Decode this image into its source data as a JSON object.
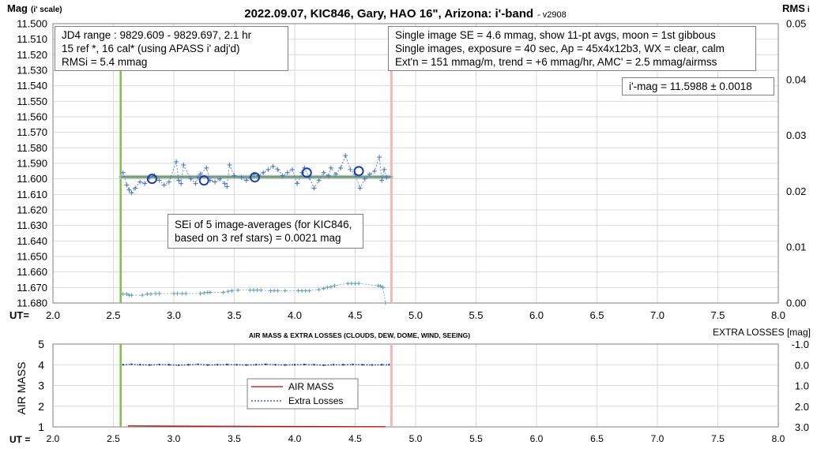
{
  "title": "2022.09.07, KIC846, Gary, HAO 16\", Arizona: i'-band",
  "version": "- v2908",
  "top_left_axis_label": "Mag",
  "top_left_axis_sub": "(i' scale)",
  "top_right_axis_label": "RMS",
  "top_right_axis_sub": "i",
  "ut_label": "UT=",
  "ut_label_bottom": "UT =",
  "info_left": [
    "JD4 range : 9829.609 - 9829.697, 2.1  hr",
    "15 ref *, 16 cal* (using APASS i' adj'd)",
    "RMSi = 5.4 mmag"
  ],
  "info_right": [
    "Single image SE = 4.6 mmag, show 11-pt avgs, moon = 1st gibbous",
    "Single images, exposure = 40 sec, Ap = 45x4x12b3, WX = clear, calm",
    "Ext'n = 151 mmag/m, trend = +6 mmag/hr, AMC' = 2.5 mmag/airmss"
  ],
  "result_box": "i'-mag = 11.5988 ± 0.0018",
  "sei_box": [
    "SEi of 5 image-averages (for KIC846,",
    "based on 3 ref stars) = 0.0021 mag"
  ],
  "bottom_title": "AIR MASS & EXTRA LOSSES (CLOUDS, DEW, DOME, WIND, SEEING)",
  "bottom_left_axis_label": "AIR MASS",
  "bottom_right_axis_label": "EXTRA LOSSES [mag]",
  "legend": [
    "AIR MASS",
    "Extra Losses"
  ],
  "colors": {
    "grid": "#d9d9d9",
    "points": "#4472c4",
    "averages": "#1f3f9f",
    "rms_points": "#5b9bb5",
    "fit_line": "#5a9e6f",
    "start_line": "#7cc243",
    "end_line": "#f4b6b6",
    "airmass": "#c00000",
    "extra_losses": "#1f3f9f"
  },
  "chart_data": [
    {
      "type": "scatter",
      "x": [
        2.0,
        2.5,
        3.0,
        3.5,
        4.0,
        4.5,
        5.0,
        5.5,
        6.0,
        6.5,
        7.0,
        7.5,
        8.0
      ],
      "x_ticks": [
        "2.0",
        "2.5",
        "3.0",
        "3.5",
        "4.0",
        "4.5",
        "5.0",
        "5.5",
        "6.0",
        "6.5",
        "7.0",
        "7.5",
        "8.0"
      ],
      "y_ticks": [
        "11.500",
        "11.510",
        "11.520",
        "11.530",
        "11.540",
        "11.550",
        "11.560",
        "11.570",
        "11.580",
        "11.590",
        "11.600",
        "11.610",
        "11.620",
        "11.630",
        "11.640",
        "11.650",
        "11.660",
        "11.670",
        "11.680"
      ],
      "y2_ticks": [
        "0.05",
        "0.04",
        "0.03",
        "0.02",
        "0.01",
        "0.00"
      ],
      "xlim": [
        2.0,
        8.0
      ],
      "ylim": [
        11.5,
        11.68
      ],
      "y2lim": [
        0.0,
        0.05
      ],
      "y_inverted": true,
      "grid": true,
      "vertical_markers": [
        2.56,
        4.8
      ],
      "fit_line": {
        "x": [
          2.56,
          4.8
        ],
        "y": [
          11.5988,
          11.5988
        ]
      },
      "series": [
        {
          "x": [
            2.58,
            2.61,
            2.63,
            2.65,
            2.68,
            2.72,
            2.76,
            2.8,
            2.84,
            2.88,
            2.92,
            2.96,
            3.02,
            3.04,
            3.06,
            3.08,
            3.14,
            3.18,
            3.2,
            3.22,
            3.27,
            3.3,
            3.34,
            3.38,
            3.42,
            3.44,
            3.46,
            3.5,
            3.56,
            3.6,
            3.66,
            3.7,
            3.74,
            3.78,
            3.82,
            3.86,
            3.9,
            3.94,
            3.98,
            4.02,
            4.06,
            4.08,
            4.12,
            4.16,
            4.2,
            4.24,
            4.28,
            4.3,
            4.34,
            4.38,
            4.42,
            4.46,
            4.5,
            4.54,
            4.58,
            4.62,
            4.66,
            4.7,
            4.72,
            4.74,
            4.76
          ],
          "y": [
            11.596,
            11.604,
            11.607,
            11.609,
            11.606,
            11.602,
            11.603,
            11.599,
            11.598,
            11.601,
            11.604,
            11.602,
            11.589,
            11.601,
            11.603,
            11.591,
            11.6,
            11.603,
            11.599,
            11.597,
            11.593,
            11.601,
            11.602,
            11.6,
            11.603,
            11.605,
            11.591,
            11.598,
            11.599,
            11.601,
            11.597,
            11.598,
            11.596,
            11.594,
            11.592,
            11.594,
            11.598,
            11.596,
            11.594,
            11.603,
            11.596,
            11.593,
            11.599,
            11.606,
            11.601,
            11.596,
            11.598,
            11.593,
            11.597,
            11.593,
            11.585,
            11.594,
            11.597,
            11.606,
            11.6,
            11.597,
            11.595,
            11.586,
            11.601,
            11.594,
            11.599
          ]
        },
        {
          "name": "",
          "x": [
            2.82,
            3.25,
            3.67,
            4.1,
            4.53
          ],
          "y": [
            11.6,
            11.601,
            11.599,
            11.596,
            11.595
          ]
        },
        {
          "axis": "y2",
          "x": [
            2.58,
            2.61,
            2.63,
            2.65,
            2.74,
            2.78,
            2.81,
            2.85,
            2.88,
            3.0,
            3.03,
            3.07,
            3.1,
            3.22,
            3.25,
            3.28,
            3.3,
            3.41,
            3.45,
            3.48,
            3.53,
            3.63,
            3.66,
            3.69,
            3.72,
            3.8,
            3.83,
            3.86,
            3.92,
            4.03,
            4.06,
            4.09,
            4.12,
            4.2,
            4.24,
            4.27,
            4.3,
            4.33,
            4.44,
            4.47,
            4.5,
            4.53,
            4.69,
            4.71,
            4.73,
            4.75
          ],
          "y": [
            0.0016,
            0.0016,
            0.0014,
            0.0014,
            0.0014,
            0.0016,
            0.0016,
            0.0017,
            0.0017,
            0.0017,
            0.0017,
            0.0017,
            0.0017,
            0.0017,
            0.0018,
            0.0019,
            0.0019,
            0.0019,
            0.0021,
            0.0022,
            0.0023,
            0.0023,
            0.0023,
            0.0023,
            0.0023,
            0.0022,
            0.0022,
            0.0022,
            0.0022,
            0.0022,
            0.0022,
            0.0022,
            0.0022,
            0.0024,
            0.0026,
            0.0028,
            0.0029,
            0.0031,
            0.0035,
            0.0035,
            0.0035,
            0.0035,
            0.0031,
            0.003,
            0.0028,
            0.0
          ]
        }
      ]
    },
    {
      "type": "line",
      "x_ticks": [
        "2.0",
        "2.5",
        "3.0",
        "3.5",
        "4.0",
        "4.5",
        "5.0",
        "5.5",
        "6.0",
        "6.5",
        "7.0",
        "7.5",
        "8.0"
      ],
      "y_ticks": [
        "5",
        "4",
        "3",
        "2",
        "1"
      ],
      "y2_ticks": [
        "-1.0",
        "0.0",
        "1.0",
        "2.0",
        "3.0"
      ],
      "xlim": [
        2.0,
        8.0
      ],
      "ylim": [
        1,
        5
      ],
      "y2lim": [
        -1.0,
        3.0
      ],
      "grid": true,
      "vertical_markers": [
        2.56,
        4.8
      ],
      "series": [
        {
          "name": "AIR MASS",
          "axis": "y",
          "x": [
            2.62,
            3.0,
            3.5,
            4.0,
            4.5,
            4.75
          ],
          "y": [
            1.05,
            1.04,
            1.03,
            1.02,
            1.01,
            1.01
          ]
        },
        {
          "name": "Extra Losses",
          "axis": "y2",
          "x": [
            2.58,
            2.65,
            2.72,
            2.8,
            2.88,
            2.96,
            3.04,
            3.12,
            3.2,
            3.28,
            3.36,
            3.44,
            3.52,
            3.6,
            3.68,
            3.76,
            3.84,
            3.92,
            4.0,
            4.08,
            4.16,
            4.24,
            4.32,
            4.4,
            4.48,
            4.56,
            4.64,
            4.72,
            4.78
          ],
          "y": [
            0.0,
            -0.02,
            0.0,
            0.01,
            -0.01,
            0.0,
            0.02,
            0.0,
            -0.02,
            0.01,
            0.0,
            -0.01,
            0.0,
            0.01,
            0.0,
            -0.02,
            0.0,
            0.01,
            0.0,
            -0.01,
            0.0,
            0.02,
            0.0,
            0.0,
            -0.01,
            0.0,
            0.01,
            0.0,
            0.0
          ]
        }
      ]
    }
  ]
}
